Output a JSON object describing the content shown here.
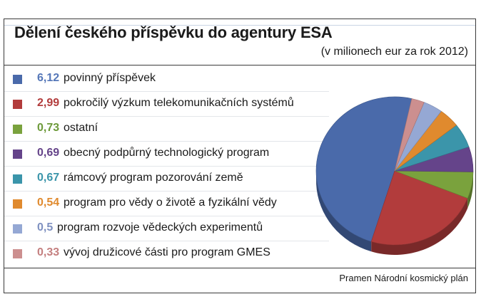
{
  "chart_data": {
    "type": "pie",
    "title": "Dělení českého příspěvku do agentury ESA",
    "subtitle": "(v milionech eur za rok 2012)",
    "source": "Pramen Národní kosmický plán",
    "slices": [
      {
        "value": 6.12,
        "value_label": "6,12",
        "label": "povinný příspěvek",
        "color": "#4a6aaa",
        "value_color": "#5577b8"
      },
      {
        "value": 2.99,
        "value_label": "2,99",
        "label": "pokročilý výzkum telekomunikačních systémů",
        "color": "#b23c3c",
        "value_color": "#b23c3c"
      },
      {
        "value": 0.73,
        "value_label": "0,73",
        "label": "ostatní",
        "color": "#7aa23d",
        "value_color": "#6d9a3a"
      },
      {
        "value": 0.69,
        "value_label": "0,69",
        "label": "obecný podpůrný technologický program",
        "color": "#65448a",
        "value_color": "#65448a"
      },
      {
        "value": 0.67,
        "value_label": "0,67",
        "label": "rámcový program pozorování země",
        "color": "#3b95aa",
        "value_color": "#3b95aa"
      },
      {
        "value": 0.54,
        "value_label": "0,54",
        "label": "program pro vědy o životě a fyzikální vědy",
        "color": "#e08a2e",
        "value_color": "#e08a2e"
      },
      {
        "value": 0.5,
        "value_label": "0,5",
        "label": "program rozvoje vědeckých experimentů",
        "color": "#95a8d4",
        "value_color": "#7e90c0"
      },
      {
        "value": 0.33,
        "value_label": "0,33",
        "label": "vývoj družicové části pro program GMES",
        "color": "#cc8f8f",
        "value_color": "#c47f7f"
      }
    ]
  }
}
